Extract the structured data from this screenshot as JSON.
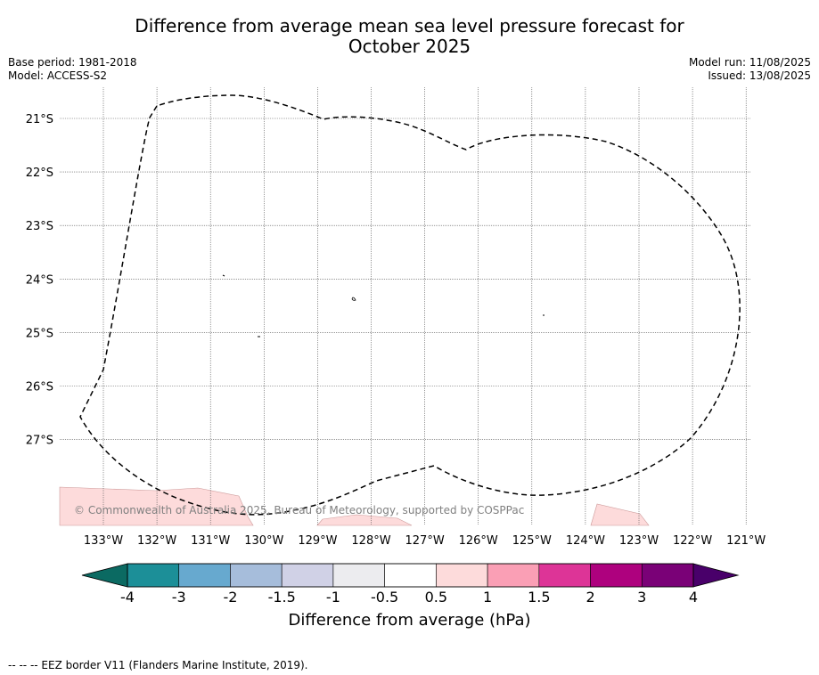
{
  "title_line1": "Difference from average mean sea level pressure forecast for",
  "title_line2": "October 2025",
  "base_period": "Base period: 1981-2018",
  "model": "Model: ACCESS-S2",
  "model_run": "Model run: 11/08/2025",
  "issued": "Issued: 13/08/2025",
  "copyright": "© Commonwealth of Australia 2025, Bureau of Meteorology, supported by COSPPac",
  "lat_labels": [
    "21°S",
    "22°S",
    "23°S",
    "24°S",
    "25°S",
    "26°S",
    "27°S"
  ],
  "lon_labels": [
    "133°W",
    "132°W",
    "131°W",
    "130°W",
    "129°W",
    "128°W",
    "127°W",
    "126°W",
    "125°W",
    "124°W",
    "123°W",
    "122°W",
    "121°W"
  ],
  "colorbar": {
    "label": "Difference from average (hPa)",
    "ticks": [
      "-4",
      "-3",
      "-2",
      "-1.5",
      "-1",
      "-0.5",
      "0.5",
      "1",
      "1.5",
      "2",
      "3",
      "4"
    ],
    "colors": {
      "under": "#0b6a62",
      "bins": [
        "#1c8f98",
        "#67a9cf",
        "#a6bddb",
        "#d0d1e6",
        "#ececef",
        "#ffffff",
        "#fddbdb",
        "#fa9fb5",
        "#dd3497",
        "#ae017e",
        "#7a0177"
      ],
      "over": "#49006a"
    }
  },
  "footnote": "-- -- -- EEZ border V11 (Flanders Marine Institute, 2019)."
}
